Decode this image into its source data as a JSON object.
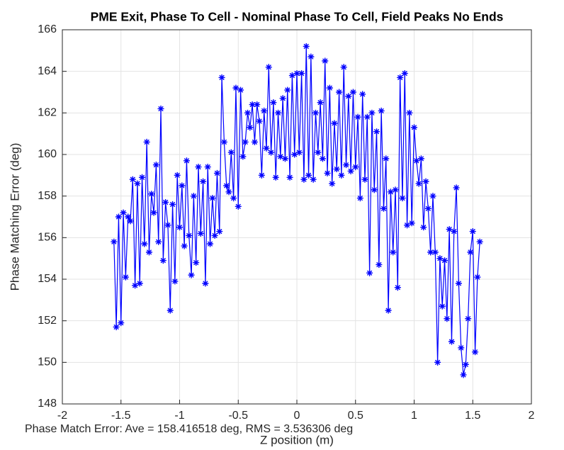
{
  "chart_data": {
    "type": "line",
    "title": "PME Exit, Phase To Cell - Nominal Phase To Cell, Field Peaks No Ends",
    "xlabel": "Z position (m)",
    "ylabel": "Phase Matching Error (deg)",
    "annotation": "Phase Match Error: Ave = 158.416518 deg, RMS = 3.536306 deg",
    "color": "#0000ff",
    "marker": "asterisk",
    "grid": true,
    "xlim": [
      -2,
      2
    ],
    "ylim": [
      148,
      166
    ],
    "xticks": [
      -2,
      -1.5,
      -1,
      -0.5,
      0,
      0.5,
      1,
      1.5,
      2
    ],
    "yticks": [
      148,
      150,
      152,
      154,
      156,
      158,
      160,
      162,
      164,
      166
    ],
    "x": [
      -1.56,
      -1.54,
      -1.52,
      -1.5,
      -1.48,
      -1.46,
      -1.44,
      -1.42,
      -1.4,
      -1.38,
      -1.36,
      -1.34,
      -1.32,
      -1.3,
      -1.28,
      -1.26,
      -1.24,
      -1.22,
      -1.2,
      -1.18,
      -1.16,
      -1.14,
      -1.12,
      -1.1,
      -1.08,
      -1.06,
      -1.04,
      -1.02,
      -1,
      -0.98,
      -0.96,
      -0.94,
      -0.92,
      -0.9,
      -0.88,
      -0.86,
      -0.84,
      -0.82,
      -0.8,
      -0.78,
      -0.76,
      -0.74,
      -0.72,
      -0.7,
      -0.68,
      -0.66,
      -0.64,
      -0.62,
      -0.6,
      -0.58,
      -0.56,
      -0.54,
      -0.52,
      -0.5,
      -0.48,
      -0.46,
      -0.44,
      -0.42,
      -0.4,
      -0.38,
      -0.36,
      -0.34,
      -0.32,
      -0.3,
      -0.28,
      -0.26,
      -0.24,
      -0.22,
      -0.2,
      -0.18,
      -0.16,
      -0.14,
      -0.12,
      -0.1,
      -0.08,
      -0.06,
      -0.04,
      -0.02,
      0,
      0.02,
      0.04,
      0.06,
      0.08,
      0.1,
      0.12,
      0.14,
      0.16,
      0.18,
      0.2,
      0.22,
      0.24,
      0.26,
      0.28,
      0.3,
      0.32,
      0.34,
      0.36,
      0.38,
      0.4,
      0.42,
      0.44,
      0.46,
      0.48,
      0.5,
      0.52,
      0.54,
      0.56,
      0.58,
      0.6,
      0.62,
      0.64,
      0.66,
      0.68,
      0.7,
      0.72,
      0.74,
      0.76,
      0.78,
      0.8,
      0.82,
      0.84,
      0.86,
      0.88,
      0.9,
      0.92,
      0.94,
      0.96,
      0.98,
      1,
      1.02,
      1.04,
      1.06,
      1.08,
      1.1,
      1.12,
      1.14,
      1.16,
      1.18,
      1.2,
      1.22,
      1.24,
      1.26,
      1.28,
      1.3,
      1.32,
      1.34,
      1.36,
      1.38,
      1.4,
      1.42,
      1.44,
      1.46,
      1.48,
      1.5,
      1.52,
      1.54,
      1.56
    ],
    "values": [
      155.8,
      151.7,
      157.0,
      151.9,
      157.2,
      154.1,
      157.0,
      156.8,
      158.8,
      153.7,
      158.6,
      153.8,
      158.9,
      155.7,
      160.6,
      155.3,
      158.1,
      157.2,
      159.5,
      155.8,
      162.2,
      154.9,
      157.7,
      156.6,
      152.5,
      157.6,
      153.9,
      159.0,
      156.5,
      158.5,
      155.6,
      159.7,
      156.1,
      154.2,
      158.0,
      154.8,
      159.4,
      156.2,
      158.7,
      153.8,
      159.4,
      155.7,
      157.9,
      156.1,
      159.1,
      156.3,
      163.7,
      160.6,
      158.5,
      158.2,
      160.1,
      157.9,
      163.2,
      157.5,
      163.1,
      159.9,
      160.6,
      162.0,
      161.3,
      162.4,
      160.6,
      162.4,
      161.6,
      159.0,
      162.1,
      160.3,
      164.2,
      160.1,
      162.5,
      158.9,
      162.0,
      159.9,
      162.7,
      159.8,
      163.1,
      158.9,
      163.8,
      160.0,
      163.9,
      160.1,
      163.9,
      158.8,
      165.2,
      159.0,
      164.7,
      158.8,
      162.0,
      160.1,
      162.5,
      159.8,
      164.5,
      159.1,
      163.2,
      158.6,
      161.5,
      159.3,
      163.0,
      159.0,
      164.2,
      159.5,
      162.8,
      159.2,
      163.0,
      159.4,
      161.8,
      157.9,
      162.9,
      158.8,
      161.8,
      154.3,
      162.0,
      158.3,
      161.1,
      154.7,
      162.1,
      157.4,
      159.8,
      152.5,
      158.2,
      155.3,
      158.3,
      153.6,
      163.7,
      157.9,
      163.9,
      156.6,
      162.0,
      156.7,
      161.3,
      159.7,
      158.6,
      159.8,
      156.5,
      158.7,
      157.4,
      155.3,
      158.0,
      155.3,
      150.0,
      155.0,
      152.7,
      154.9,
      152.1,
      156.4,
      151.0,
      156.3,
      158.4,
      153.8,
      150.7,
      149.4,
      149.9,
      152.1,
      155.3,
      156.3,
      150.5,
      154.1,
      155.8
    ]
  }
}
